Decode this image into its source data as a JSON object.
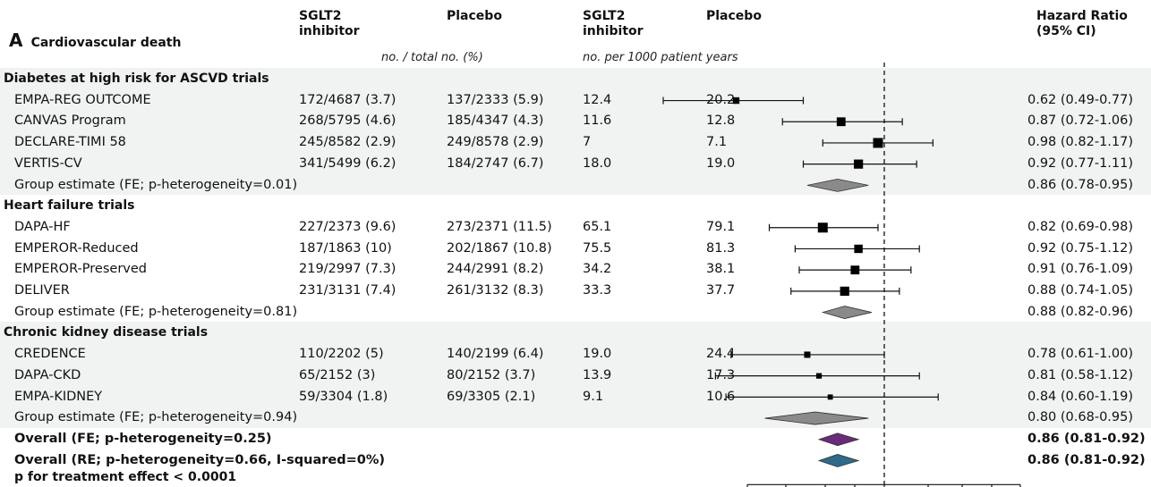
{
  "panel_letter": "A",
  "panel_title": "Cardiovascular death",
  "columns": {
    "treat_events": "SGLT2\ninhibitor",
    "placebo_events": "Placebo",
    "treat_rate": "SGLT2\ninhibitor",
    "placebo_rate": "Placebo",
    "hr": "Hazard Ratio\n(95% CI)"
  },
  "subheaders": {
    "events": "no. / total no. (%)",
    "rates": "no. per 1000 patient years"
  },
  "colors": {
    "band": "#f1f2f2",
    "group_diamond": "#8a8a8a",
    "overall_fe_diamond": "#6a2a7a",
    "overall_re_diamond": "#2f6a8a"
  },
  "footer": "p for treatment effect < 0.0001",
  "chart_data": {
    "type": "forest",
    "reference_line": 1.0,
    "x_scale": "log",
    "xlim": [
      0.5,
      1.25
    ],
    "rows": [
      {
        "kind": "section",
        "label": "Diabetes at high risk for ASCVD trials"
      },
      {
        "kind": "study",
        "label": "EMPA-REG OUTCOME",
        "treat": "172/4687 (3.7)",
        "placebo": "137/2333 (5.9)",
        "treat_rate": "12.4",
        "placebo_rate": "20.2",
        "hr_text": "0.62 (0.49-0.77)",
        "hr": 0.62,
        "lo": 0.49,
        "hi": 0.77,
        "weight": 0.55
      },
      {
        "kind": "study",
        "label": "CANVAS Program",
        "treat": "268/5795 (4.6)",
        "placebo": "185/4347 (4.3)",
        "treat_rate": "11.6",
        "placebo_rate": "12.8",
        "hr_text": "0.87 (0.72-1.06)",
        "hr": 0.87,
        "lo": 0.72,
        "hi": 1.06,
        "weight": 0.85
      },
      {
        "kind": "study",
        "label": "DECLARE-TIMI 58",
        "treat": "245/8582 (2.9)",
        "placebo": "249/8578 (2.9)",
        "treat_rate": "7",
        "placebo_rate": "7.1",
        "hr_text": "0.98 (0.82-1.17)",
        "hr": 0.98,
        "lo": 0.82,
        "hi": 1.17,
        "weight": 1.0
      },
      {
        "kind": "study",
        "label": "VERTIS-CV",
        "treat": "341/5499 (6.2)",
        "placebo": "184/2747 (6.7)",
        "treat_rate": "18.0",
        "placebo_rate": "19.0",
        "hr_text": "0.92 (0.77-1.11)",
        "hr": 0.92,
        "lo": 0.77,
        "hi": 1.11,
        "weight": 0.9
      },
      {
        "kind": "group",
        "label": "Group estimate (FE; p-heterogeneity=0.01)",
        "hr_text": "0.86 (0.78-0.95)",
        "hr": 0.86,
        "lo": 0.78,
        "hi": 0.95
      },
      {
        "kind": "section",
        "label": "Heart failure trials"
      },
      {
        "kind": "study",
        "label": "DAPA-HF",
        "treat": "227/2373 (9.6)",
        "placebo": "273/2371 (11.5)",
        "treat_rate": "65.1",
        "placebo_rate": "79.1",
        "hr_text": "0.82 (0.69-0.98)",
        "hr": 0.82,
        "lo": 0.69,
        "hi": 0.98,
        "weight": 1.0
      },
      {
        "kind": "study",
        "label": "EMPEROR-Reduced",
        "treat": "187/1863 (10)",
        "placebo": "202/1867 (10.8)",
        "treat_rate": "75.5",
        "placebo_rate": "81.3",
        "hr_text": "0.92 (0.75-1.12)",
        "hr": 0.92,
        "lo": 0.75,
        "hi": 1.12,
        "weight": 0.8
      },
      {
        "kind": "study",
        "label": "EMPEROR-Preserved",
        "treat": "219/2997 (7.3)",
        "placebo": "244/2991 (8.2)",
        "treat_rate": "34.2",
        "placebo_rate": "38.1",
        "hr_text": "0.91 (0.76-1.09)",
        "hr": 0.91,
        "lo": 0.76,
        "hi": 1.09,
        "weight": 0.85
      },
      {
        "kind": "study",
        "label": "DELIVER",
        "treat": "231/3131 (7.4)",
        "placebo": "261/3132 (8.3)",
        "treat_rate": "33.3",
        "placebo_rate": "37.7",
        "hr_text": "0.88 (0.74-1.05)",
        "hr": 0.88,
        "lo": 0.74,
        "hi": 1.05,
        "weight": 0.9
      },
      {
        "kind": "group",
        "label": "Group estimate (FE; p-heterogeneity=0.81)",
        "hr_text": "0.88 (0.82-0.96)",
        "hr": 0.88,
        "lo": 0.82,
        "hi": 0.96
      },
      {
        "kind": "section",
        "label": "Chronic kidney disease trials"
      },
      {
        "kind": "study",
        "label": "CREDENCE",
        "treat": "110/2202 (5)",
        "placebo": "140/2199 (6.4)",
        "treat_rate": "19.0",
        "placebo_rate": "24.4",
        "hr_text": "0.78 (0.61-1.00)",
        "hr": 0.78,
        "lo": 0.61,
        "hi": 1.0,
        "weight": 0.5
      },
      {
        "kind": "study",
        "label": "DAPA-CKD",
        "treat": "65/2152 (3)",
        "placebo": "80/2152 (3.7)",
        "treat_rate": "13.9",
        "placebo_rate": "17.3",
        "hr_text": "0.81 (0.58-1.12)",
        "hr": 0.81,
        "lo": 0.58,
        "hi": 1.12,
        "weight": 0.4
      },
      {
        "kind": "study",
        "label": "EMPA-KIDNEY",
        "treat": "59/3304 (1.8)",
        "placebo": "69/3305 (2.1)",
        "treat_rate": "9.1",
        "placebo_rate": "10.6",
        "hr_text": "0.84 (0.60-1.19)",
        "hr": 0.84,
        "lo": 0.6,
        "hi": 1.19,
        "weight": 0.35
      },
      {
        "kind": "group",
        "label": "Group estimate (FE; p-heterogeneity=0.94)",
        "hr_text": "0.80 (0.68-0.95)",
        "hr": 0.8,
        "lo": 0.68,
        "hi": 0.95
      },
      {
        "kind": "overall",
        "label": "Overall (FE; p-heterogeneity=0.25)",
        "hr_text": "0.86 (0.81-0.92)",
        "hr": 0.86,
        "lo": 0.81,
        "hi": 0.92,
        "color_key": "overall_fe_diamond"
      },
      {
        "kind": "overall",
        "label": "Overall (RE; p-heterogeneity=0.66, I-squared=0%)",
        "hr_text": "0.86 (0.81-0.92)",
        "hr": 0.86,
        "lo": 0.81,
        "hi": 0.92,
        "color_key": "overall_re_diamond"
      }
    ]
  }
}
